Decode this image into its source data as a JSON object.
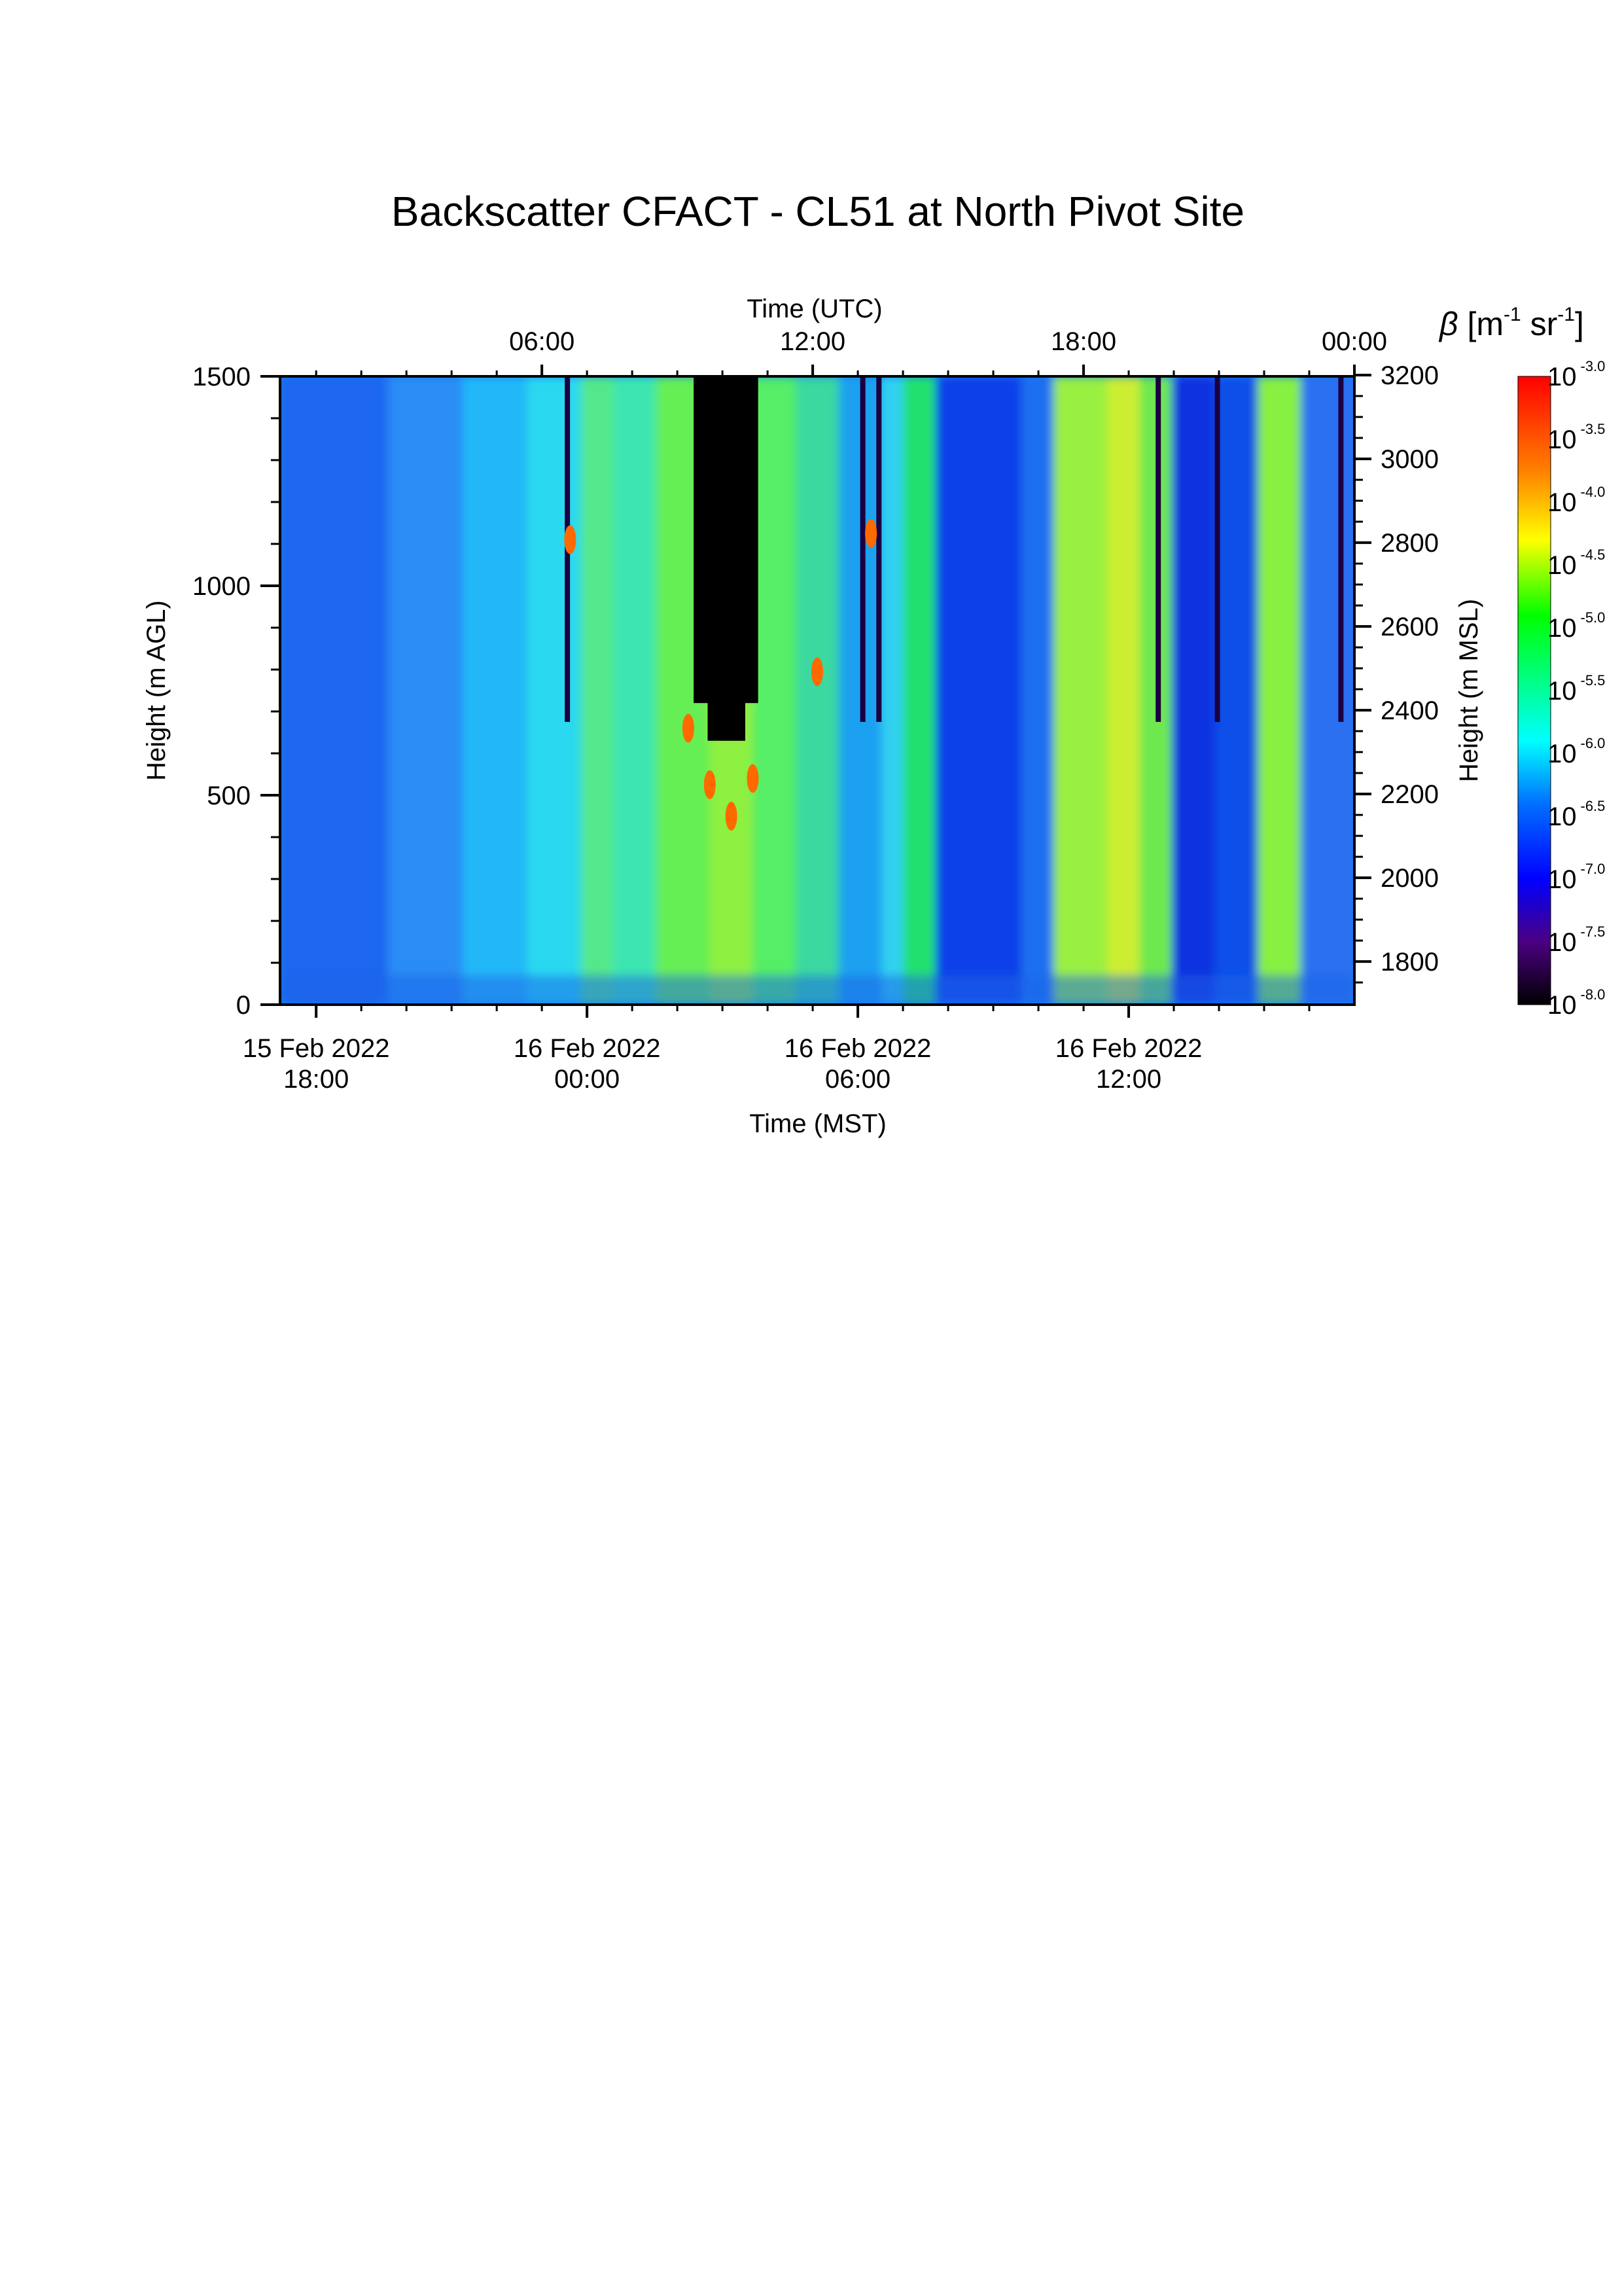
{
  "chart_data": {
    "type": "heatmap",
    "title": "Backscatter CFACT - CL51 at North Pivot Site",
    "top_axis": {
      "label": "Time (UTC)",
      "ticks": [
        "06:00",
        "12:00",
        "18:00",
        "00:00"
      ],
      "tick_hours_utc": [
        6,
        12,
        18,
        24
      ]
    },
    "bottom_axis": {
      "label": "Time (MST)",
      "ticks": [
        {
          "line1": "15 Feb 2022",
          "line2": "18:00"
        },
        {
          "line1": "16 Feb 2022",
          "line2": "00:00"
        },
        {
          "line1": "16 Feb 2022",
          "line2": "06:00"
        },
        {
          "line1": "16 Feb 2022",
          "line2": "12:00"
        }
      ],
      "tick_hours_utc": [
        1,
        7,
        13,
        19
      ]
    },
    "x_range_hours_utc": [
      0.2,
      24
    ],
    "left_axis": {
      "label": "Height (m AGL)",
      "ticks": [
        "0",
        "500",
        "1000",
        "1500"
      ],
      "tick_values": [
        0,
        500,
        1000,
        1500
      ],
      "range": [
        0,
        1500
      ]
    },
    "right_axis": {
      "label": "Height (m MSL)",
      "ticks": [
        "1800",
        "2000",
        "2200",
        "2400",
        "2600",
        "2800",
        "3000",
        "3200"
      ],
      "tick_values": [
        1800,
        2000,
        2200,
        2400,
        2600,
        2800,
        3000,
        3200
      ],
      "range": [
        1697,
        3197
      ]
    },
    "colorbar": {
      "label_symbol": "β",
      "label_unit_parts": {
        "open": " [m",
        "exp1": "-1",
        "mid": " sr",
        "exp2": "-1",
        "close": "]"
      },
      "scale": "log",
      "base": "10",
      "exponents": [
        "-3.0",
        "-3.5",
        "-4.0",
        "-4.5",
        "-5.0",
        "-5.5",
        "-6.0",
        "-6.5",
        "-7.0",
        "-7.5",
        "-8.0"
      ],
      "range_log10": [
        -8.0,
        -3.0
      ],
      "colormap": [
        "#000000",
        "#4b0082",
        "#0000ff",
        "#0070ff",
        "#00ffff",
        "#00ff80",
        "#00ff00",
        "#ffff00",
        "#ff8000",
        "#ff0000"
      ]
    }
  }
}
